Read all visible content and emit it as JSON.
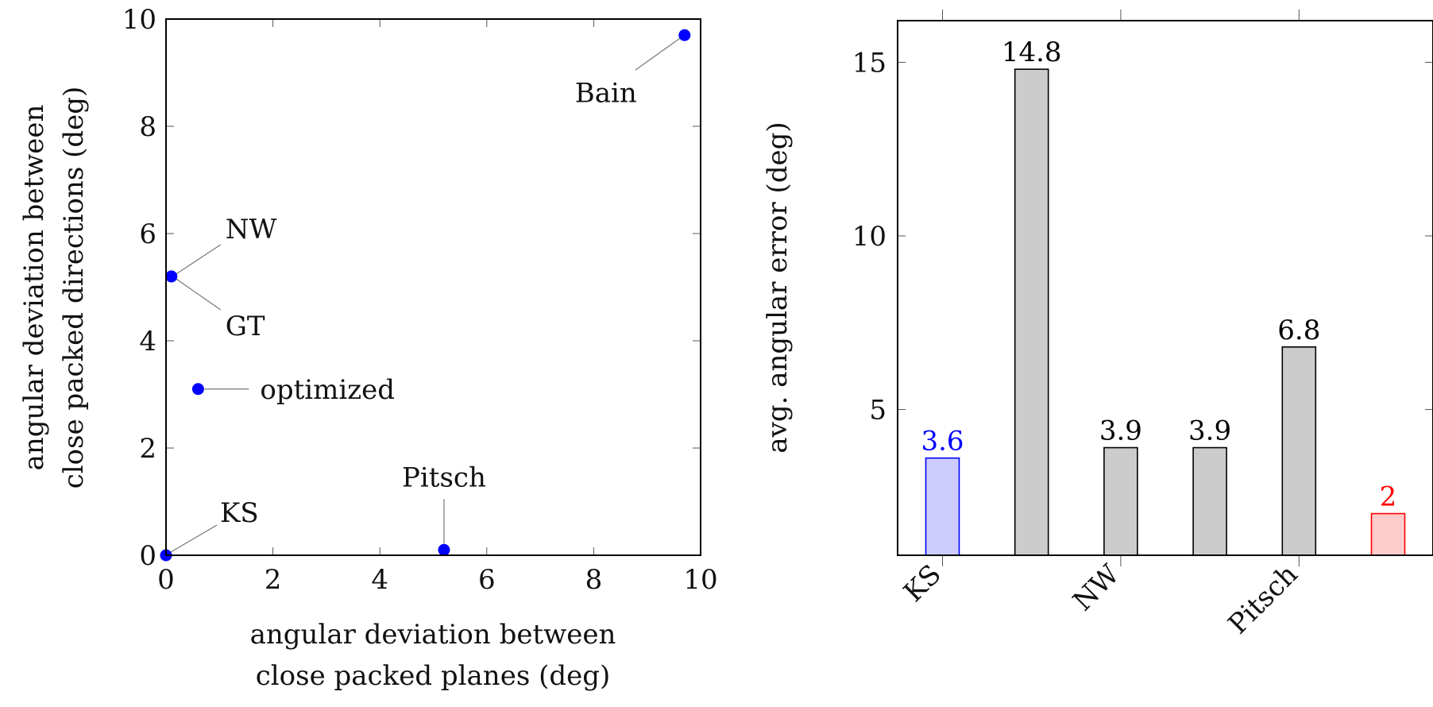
{
  "chart_data": [
    {
      "type": "scatter",
      "xlabel": [
        "angular deviation between",
        "close packed planes (deg)"
      ],
      "ylabel": [
        "angular deviation between",
        "close packed directions (deg)"
      ],
      "xlim": [
        0,
        10
      ],
      "ylim": [
        0,
        10
      ],
      "xticks": [
        0,
        2,
        4,
        6,
        8,
        10
      ],
      "yticks": [
        0,
        2,
        4,
        6,
        8,
        10
      ],
      "grid": false,
      "marker_color": "#0000ff",
      "points": [
        {
          "label": "KS",
          "x": 0.0,
          "y": 0.0
        },
        {
          "label": "NW",
          "x": 0.1,
          "y": 5.2
        },
        {
          "label": "GT",
          "x": 0.1,
          "y": 5.2
        },
        {
          "label": "optimized",
          "x": 0.6,
          "y": 3.1
        },
        {
          "label": "Pitsch",
          "x": 5.2,
          "y": 0.1
        },
        {
          "label": "Bain",
          "x": 9.7,
          "y": 9.7
        }
      ]
    },
    {
      "type": "bar",
      "ylabel": "avg. angular error (deg)",
      "ylim": [
        0.8,
        16.2
      ],
      "yticks": [
        5,
        10,
        15
      ],
      "xtick_labels": [
        "KS",
        "NW",
        "Pitsch"
      ],
      "grid": false,
      "bars": [
        {
          "value": 3.6,
          "label": "3.6",
          "color": "#0000ff",
          "fill": "#ccccff"
        },
        {
          "value": 14.8,
          "label": "14.8",
          "color": "#000000",
          "fill": "#cccccc"
        },
        {
          "value": 3.9,
          "label": "3.9",
          "color": "#000000",
          "fill": "#cccccc"
        },
        {
          "value": 3.9,
          "label": "3.9",
          "color": "#000000",
          "fill": "#cccccc"
        },
        {
          "value": 6.8,
          "label": "6.8",
          "color": "#000000",
          "fill": "#cccccc"
        },
        {
          "value": 2,
          "label": "2",
          "color": "#ff0000",
          "fill": "#ffcccc"
        }
      ]
    }
  ]
}
